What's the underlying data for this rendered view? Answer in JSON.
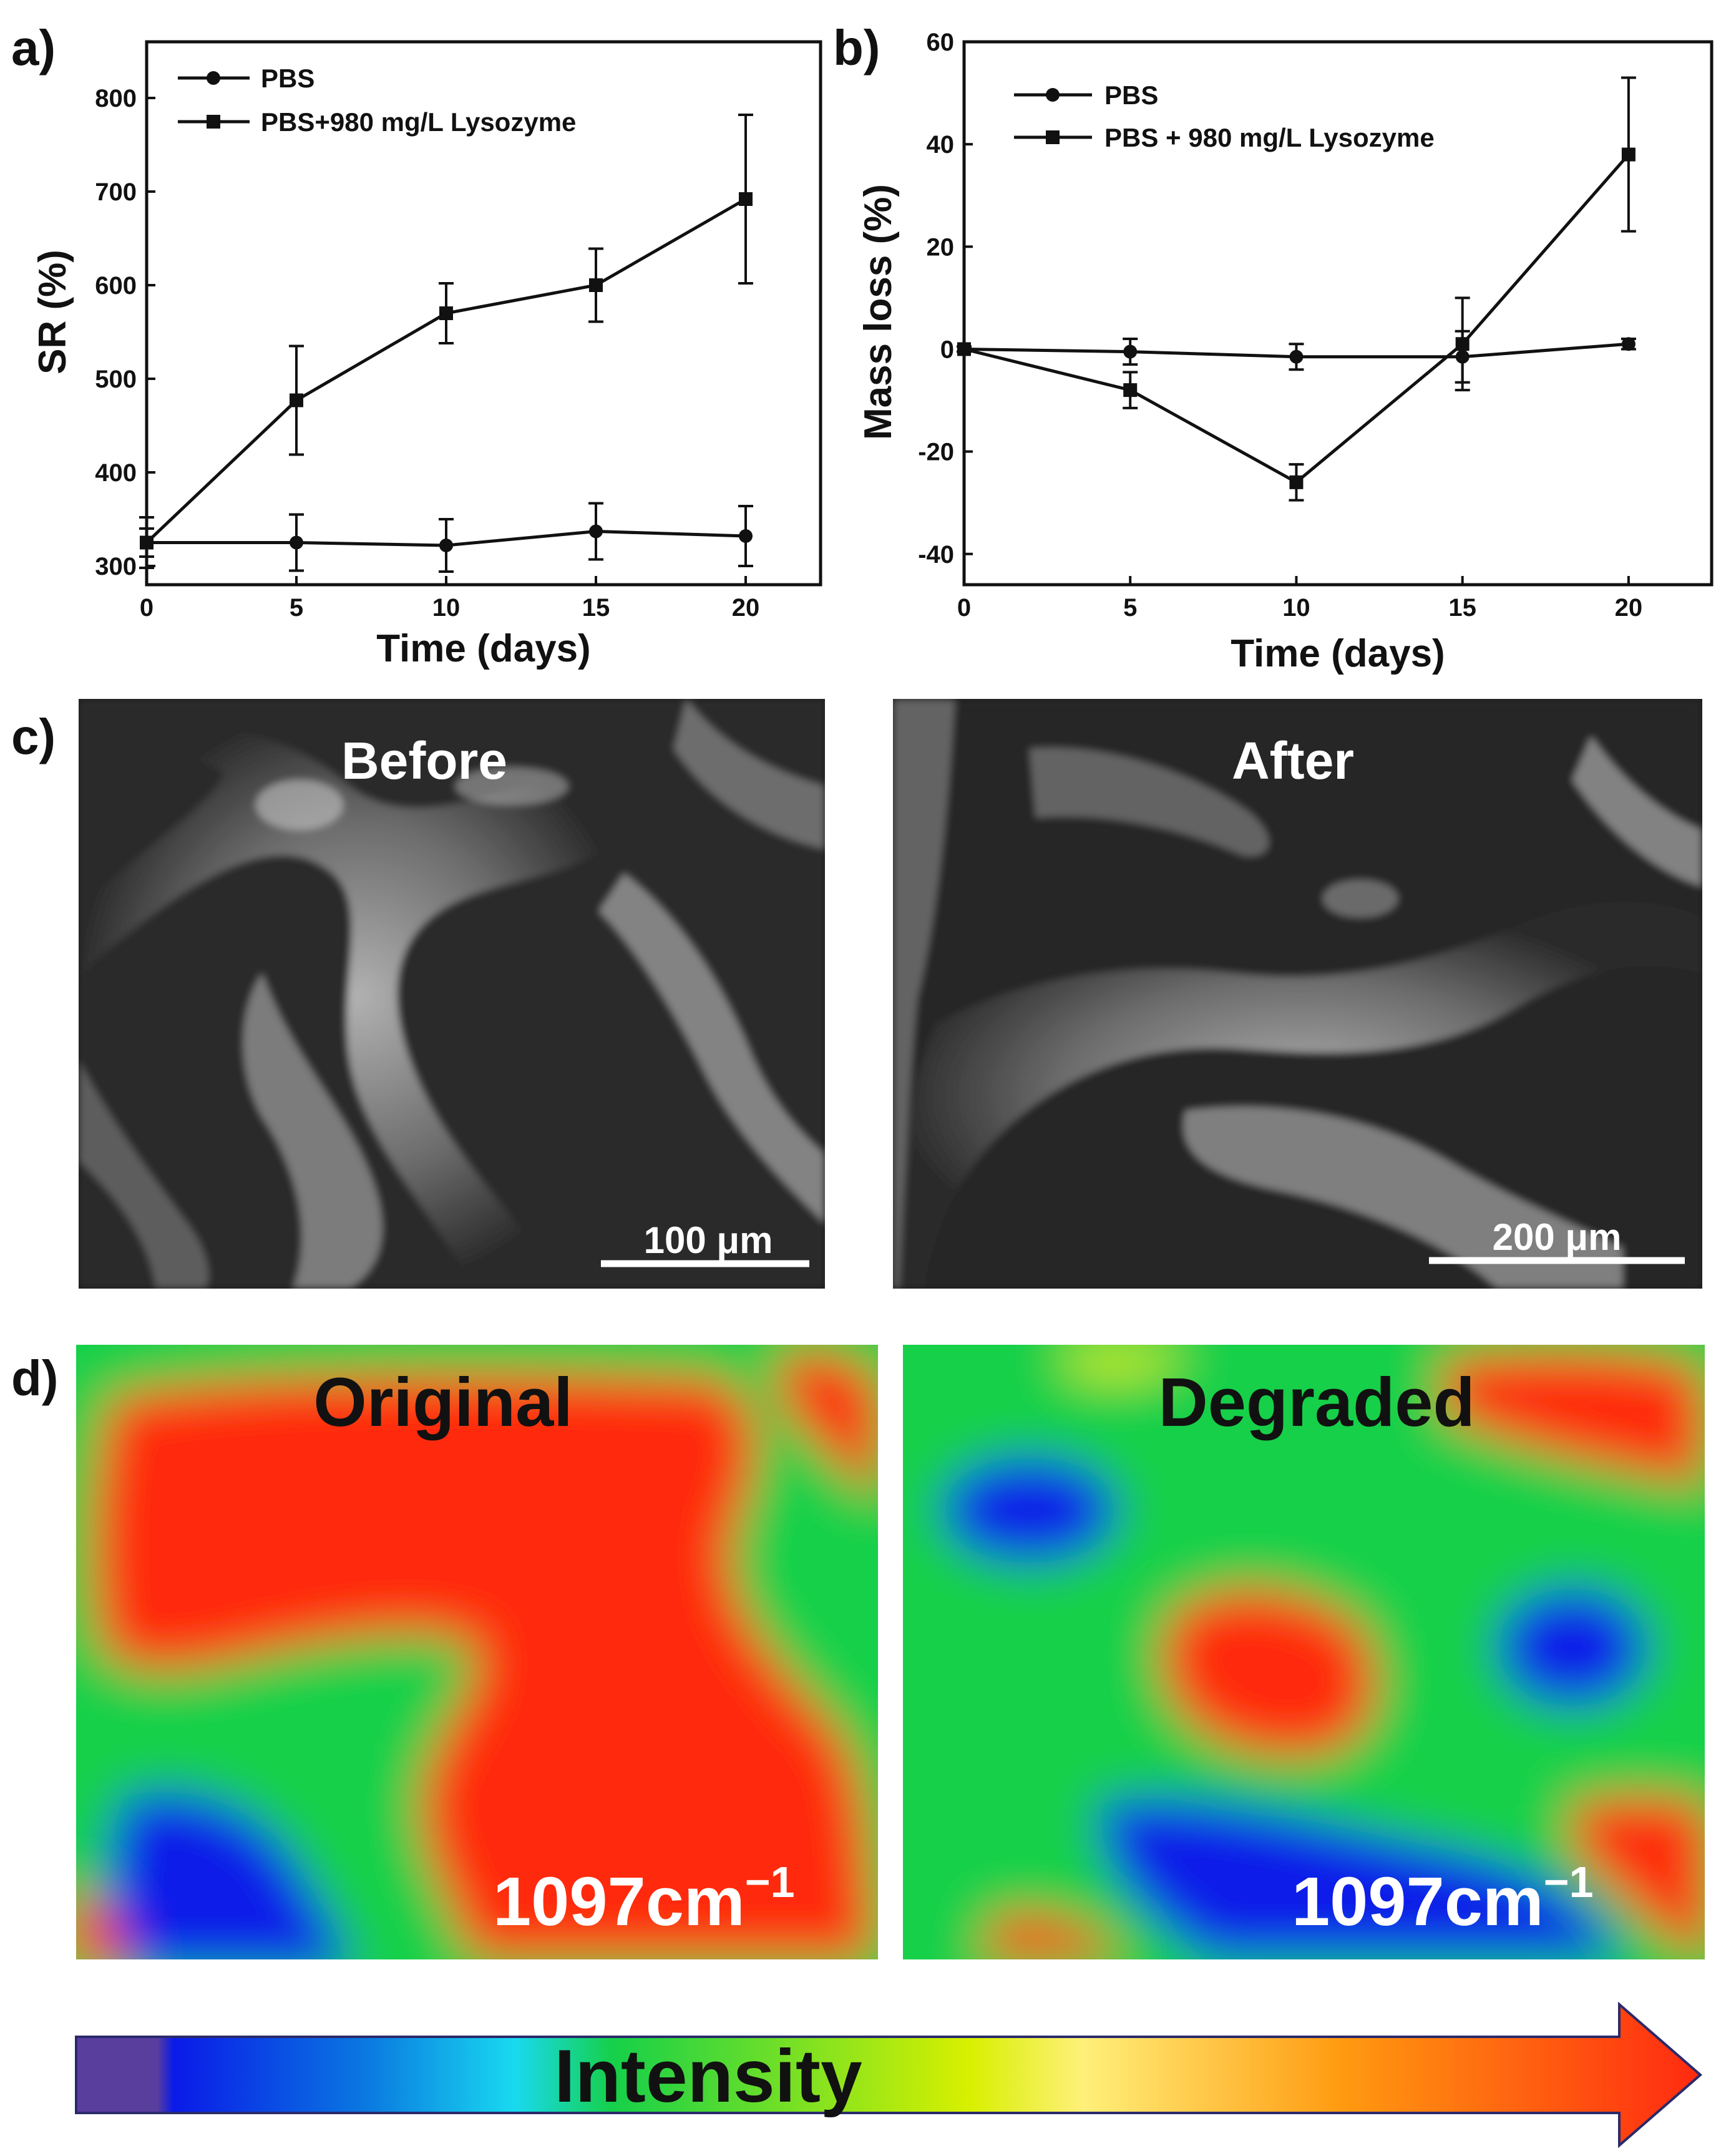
{
  "panels": {
    "a": "a)",
    "b": "b)",
    "c": "c)",
    "d": "d)"
  },
  "chart_data": [
    {
      "id": "a",
      "type": "line",
      "title": "",
      "xlabel": "Time (days)",
      "ylabel": "SR (%)",
      "xlim": [
        0,
        22.5
      ],
      "ylim": [
        280,
        860
      ],
      "xticks": [
        0,
        5,
        10,
        15,
        20
      ],
      "yticks": [
        300,
        400,
        500,
        600,
        700,
        800
      ],
      "legend_position": "top-left",
      "series": [
        {
          "name": "PBS",
          "marker": "circle",
          "x": [
            0,
            5,
            10,
            15,
            20
          ],
          "y": [
            325,
            325,
            322,
            337,
            332
          ],
          "err": [
            27,
            30,
            28,
            30,
            32
          ]
        },
        {
          "name": "PBS+980 mg/L Lysozyme",
          "marker": "square",
          "x": [
            0,
            5,
            10,
            15,
            20
          ],
          "y": [
            325,
            477,
            570,
            600,
            692
          ],
          "err": [
            15,
            58,
            32,
            39,
            90
          ]
        }
      ]
    },
    {
      "id": "b",
      "type": "line",
      "title": "",
      "xlabel": "Time (days)",
      "ylabel": "Mass loss (%)",
      "xlim": [
        0,
        22.5
      ],
      "ylim": [
        -46,
        60
      ],
      "xticks": [
        0,
        5,
        10,
        15,
        20
      ],
      "yticks": [
        -40,
        -20,
        0,
        20,
        40,
        60
      ],
      "legend_position": "top-left",
      "series": [
        {
          "name": "PBS",
          "marker": "circle",
          "x": [
            0,
            5,
            10,
            15,
            20
          ],
          "y": [
            0,
            -0.5,
            -1.5,
            -1.5,
            1
          ],
          "err": [
            0.5,
            2.5,
            2.5,
            5,
            1
          ]
        },
        {
          "name": "PBS + 980 mg/L Lysozyme",
          "marker": "square",
          "x": [
            0,
            5,
            10,
            15,
            20
          ],
          "y": [
            0,
            -8,
            -26,
            1,
            38
          ],
          "err": [
            0.5,
            3.5,
            3.5,
            9,
            15
          ]
        }
      ]
    }
  ],
  "sem": {
    "before_label": "Before",
    "after_label": "After",
    "before_scale": "100 μm",
    "after_scale": "200 μm"
  },
  "maps": {
    "original_label": "Original",
    "degraded_label": "Degraded",
    "wavenumber": "1097cm",
    "wavenumber_sup": "−1"
  },
  "colorbar": {
    "label": "Intensity",
    "colors": [
      "#5a3e9e",
      "#0a1ae8",
      "#0a7ae0",
      "#19d9f0",
      "#15d04a",
      "#d8f000",
      "#fff07a",
      "#ff9a10",
      "#ff2a10"
    ]
  }
}
